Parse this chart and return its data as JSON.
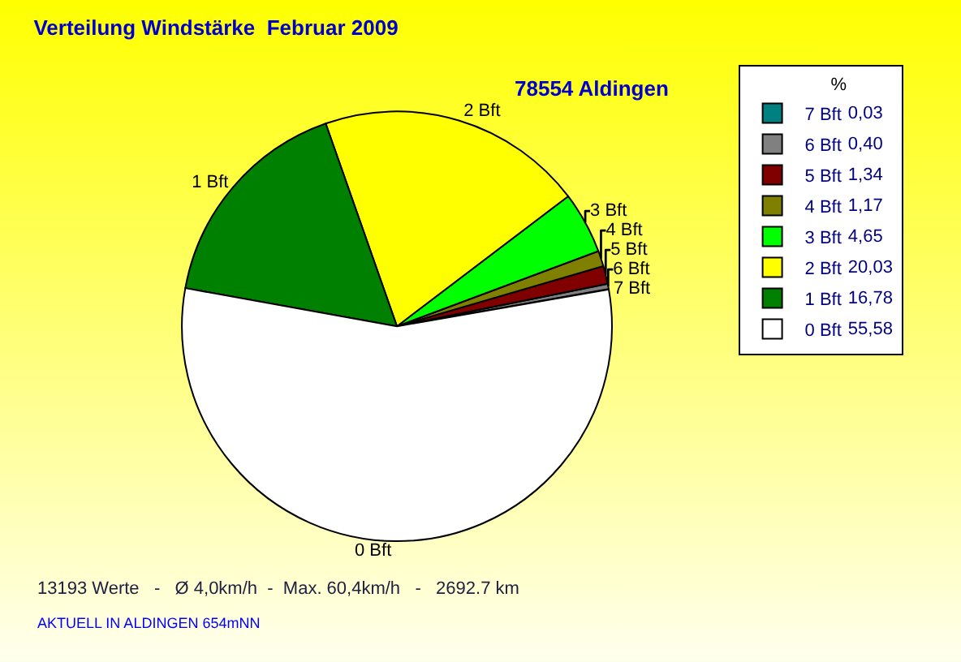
{
  "chart_data": {
    "type": "pie",
    "title": "Verteilung Windstärke  Februar 2009",
    "subtitle": "78554 Aldingen",
    "legend_title": "%",
    "categories": [
      "7 Bft",
      "6 Bft",
      "5 Bft",
      "4 Bft",
      "3 Bft",
      "2 Bft",
      "1 Bft",
      "0 Bft"
    ],
    "values": [
      0.03,
      0.4,
      1.34,
      1.17,
      4.65,
      20.03,
      16.78,
      55.58
    ],
    "value_labels": [
      "0,03",
      "0,40",
      "1,34",
      "1,17",
      "4,65",
      "20,03",
      "16,78",
      "55,58"
    ],
    "colors": [
      "#008080",
      "#808080",
      "#800000",
      "#808000",
      "#00ff00",
      "#ffff00",
      "#008000",
      "#ffffff"
    ],
    "legend": "top right",
    "annotations": [
      "13193 Werte   -   Ø 4,0km/h  -  Max. 60,4km/h   -   2692.7 km",
      "AKTUELL IN ALDINGEN 654mNN"
    ]
  }
}
